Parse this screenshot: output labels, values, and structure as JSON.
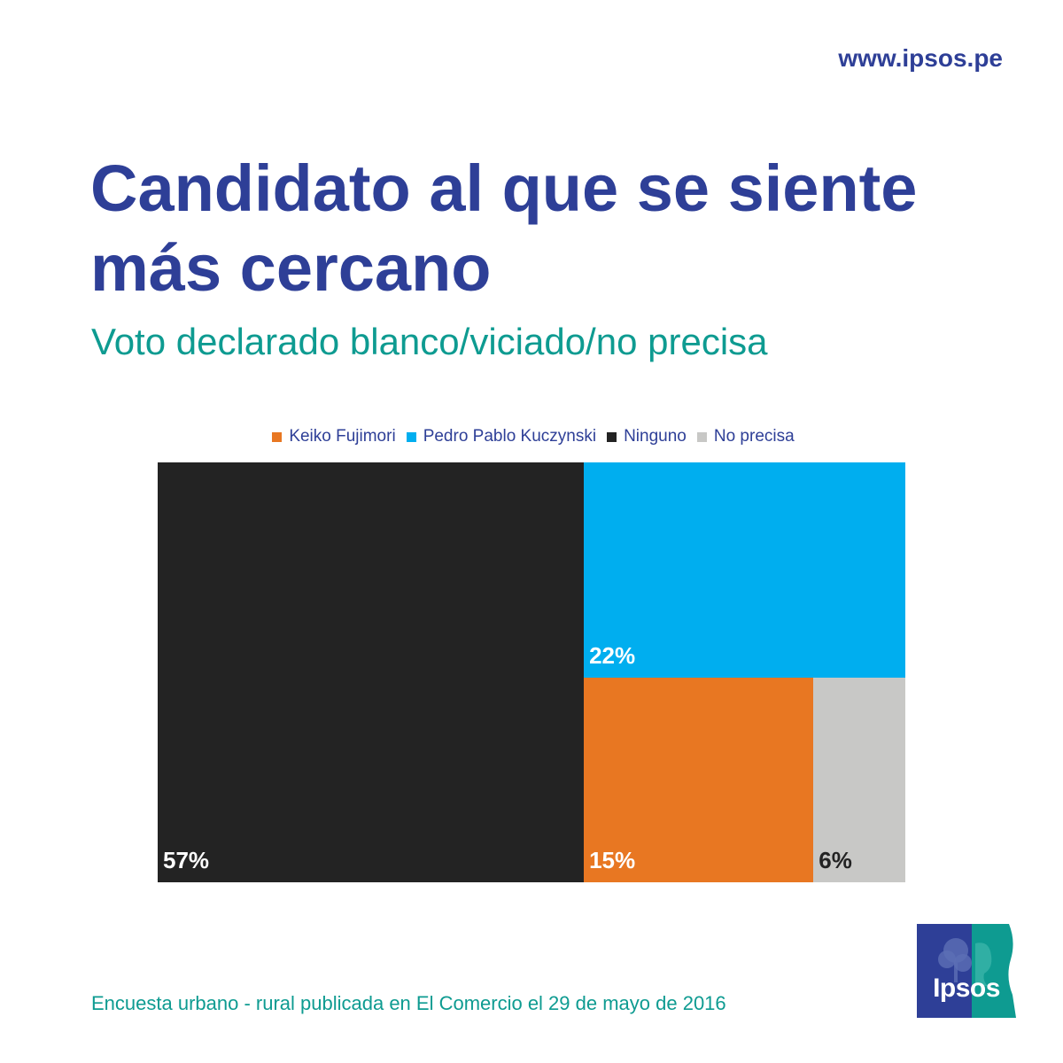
{
  "header": {
    "url": "www.ipsos.pe",
    "title": "Candidato al que se siente más cercano",
    "subtitle": "Voto declarado blanco/viciado/no precisa"
  },
  "footer": {
    "source": "Encuesta urbano - rural publicada en El Comercio el 29 de mayo de 2016",
    "logo_text": "Ipsos"
  },
  "colors": {
    "brand_blue": "#2e3f97",
    "teal": "#0e9b91"
  },
  "chart_data": {
    "type": "treemap",
    "legend": [
      {
        "label": "Keiko Fujimori",
        "color": "#e87722"
      },
      {
        "label": "Pedro Pablo Kuczynski",
        "color": "#00aeef"
      },
      {
        "label": "Ninguno",
        "color": "#232323"
      },
      {
        "label": "No precisa",
        "color": "#c8c8c6"
      }
    ],
    "tiles": [
      {
        "category": "Ninguno",
        "value": 57,
        "label": "57%",
        "color": "#232323",
        "label_color": "#ffffff"
      },
      {
        "category": "Pedro Pablo Kuczynski",
        "value": 22,
        "label": "22%",
        "color": "#00aeef",
        "label_color": "#ffffff"
      },
      {
        "category": "Keiko Fujimori",
        "value": 15,
        "label": "15%",
        "color": "#e87722",
        "label_color": "#ffffff"
      },
      {
        "category": "No precisa",
        "value": 6,
        "label": "6%",
        "color": "#c8c8c6",
        "label_color": "#232323"
      }
    ]
  }
}
